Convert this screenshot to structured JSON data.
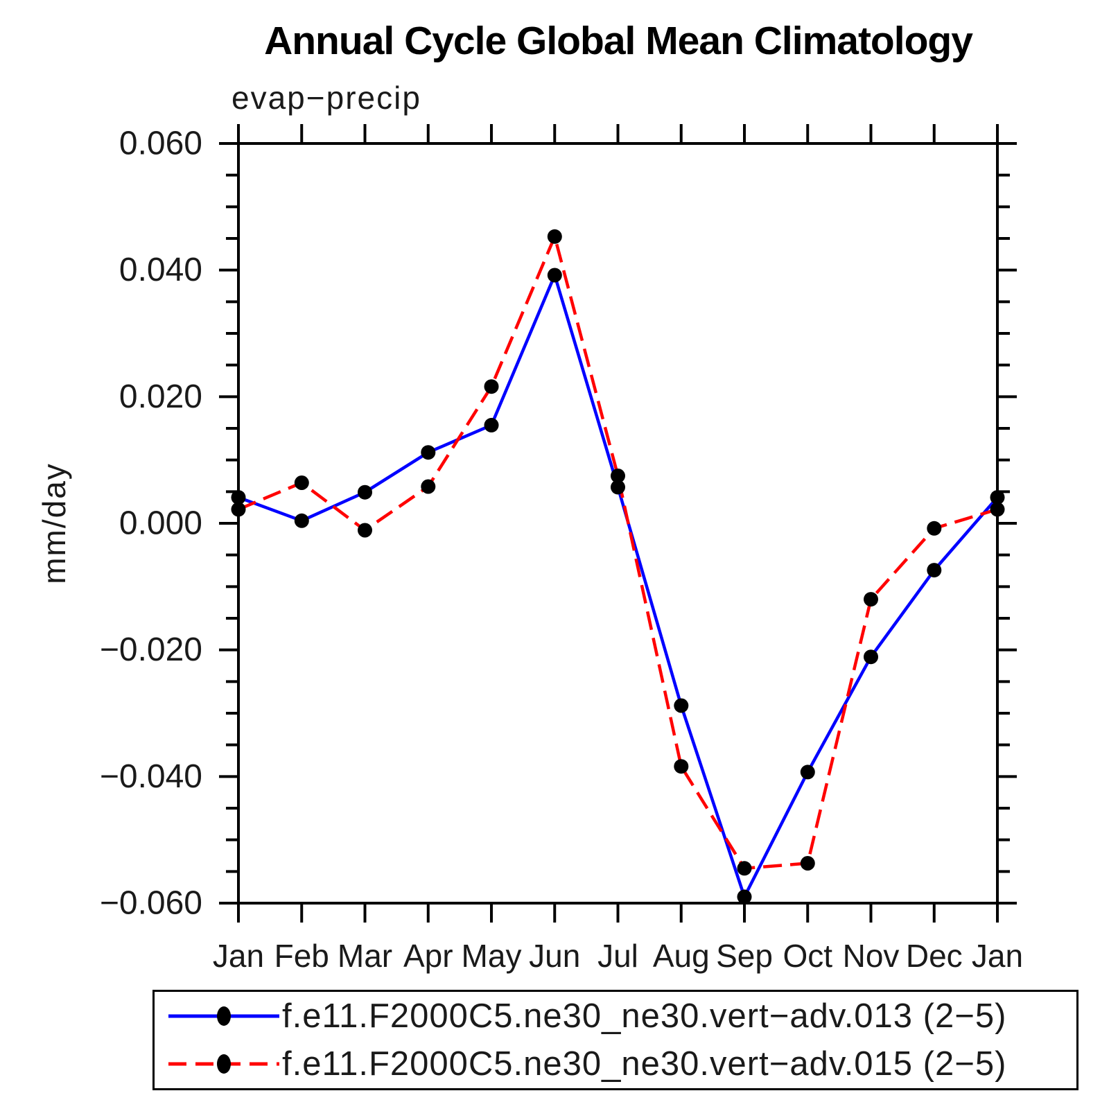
{
  "chart_data": {
    "type": "line",
    "title": "Annual Cycle Global Mean Climatology",
    "subtitle": "evap−precip",
    "ylabel": "mm/day",
    "xlabel": "",
    "categories": [
      "Jan",
      "Feb",
      "Mar",
      "Apr",
      "May",
      "Jun",
      "Jul",
      "Aug",
      "Sep",
      "Oct",
      "Nov",
      "Dec",
      "Jan"
    ],
    "ylim": [
      -0.06,
      0.06
    ],
    "ytick_step": 0.02,
    "yminor_step": 0.005,
    "ytick_labels": [
      "0.060",
      "0.040",
      "0.020",
      "0.000",
      "−0.020",
      "−0.040",
      "−0.060"
    ],
    "grid": false,
    "tick_style": "outward-all-sides",
    "legend_position": "bottom-box",
    "axis_color": "#000000",
    "series": [
      {
        "name": "f.e11.F2000C5.ne30_ne30.vert−adv.013 (2−5)",
        "color": "#0000ff",
        "line_style": "solid",
        "marker": "filled-circle",
        "marker_color": "#000000",
        "values": [
          0.0041,
          0.0004,
          0.0049,
          0.0112,
          0.0155,
          0.0392,
          0.0057,
          -0.0288,
          -0.059,
          -0.0393,
          -0.0211,
          -0.0074,
          0.0041
        ]
      },
      {
        "name": "f.e11.F2000C5.ne30_ne30.vert−adv.015 (2−5)",
        "color": "#ff0000",
        "line_style": "dashed",
        "marker": "filled-circle",
        "marker_color": "#000000",
        "values": [
          0.0022,
          0.0064,
          -0.0011,
          0.0058,
          0.0216,
          0.0453,
          0.0075,
          -0.0384,
          -0.0545,
          -0.0537,
          -0.012,
          -0.0008,
          0.0022
        ]
      }
    ]
  }
}
